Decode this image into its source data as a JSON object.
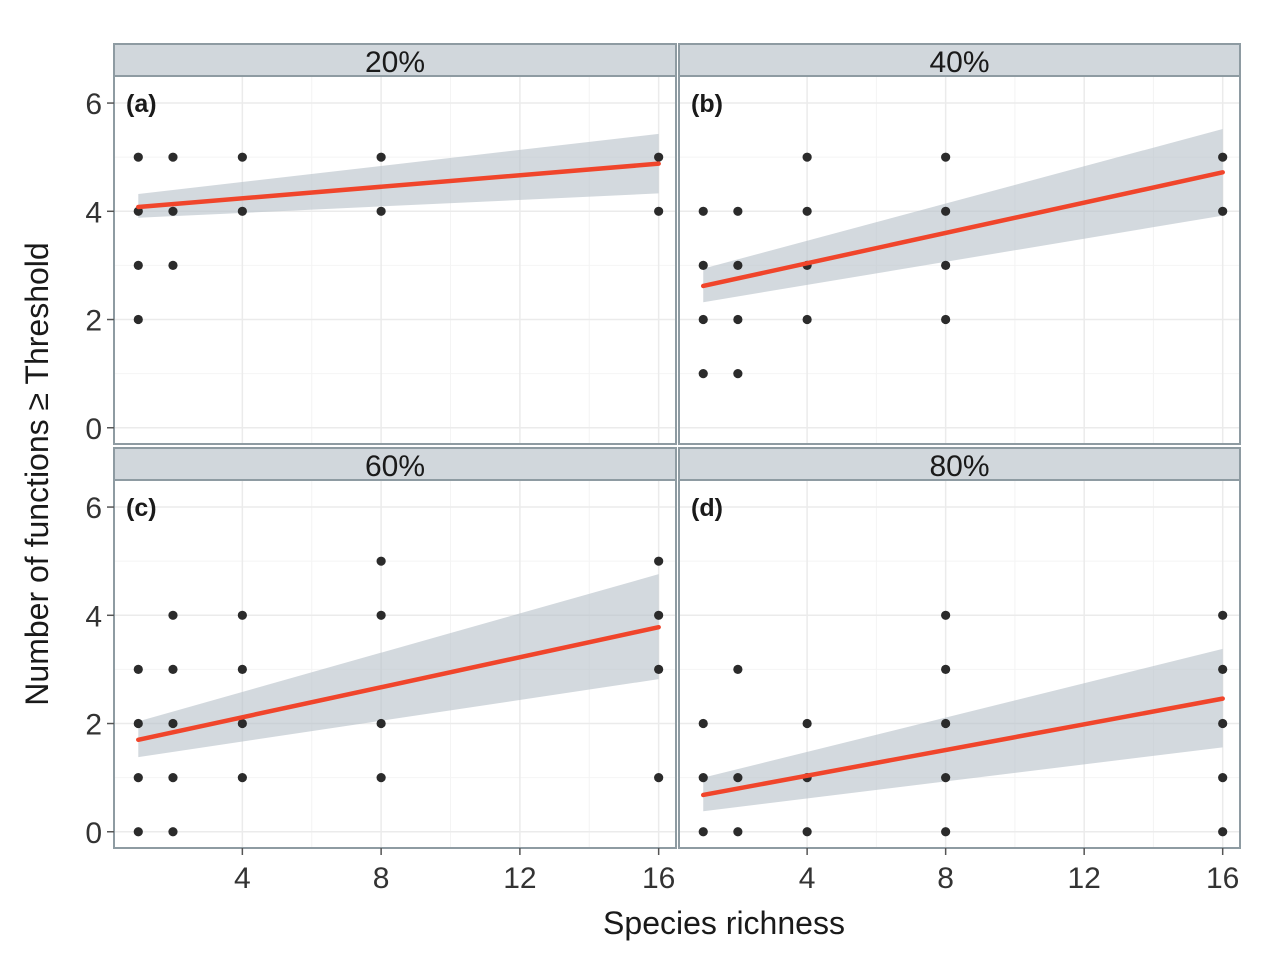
{
  "chart_data": {
    "type": "scatter",
    "facet_layout": "2x2 grid",
    "xlabel": "Species richness",
    "ylabel": "Number of functions ≥ Threshold",
    "xlim": [
      0.3,
      16.5
    ],
    "ylim": [
      -0.3,
      6.5
    ],
    "x_ticks": [
      4,
      8,
      12,
      16
    ],
    "x_tick_labels": [
      "4",
      "8",
      "12",
      "16"
    ],
    "y_ticks": [
      0,
      2,
      4,
      6
    ],
    "y_tick_labels": [
      "0",
      "2",
      "4",
      "6"
    ],
    "grid": true,
    "colors": {
      "strip_fill": "#d1d7dc",
      "border": "#8e9ba2",
      "point": "#2b2b2b",
      "fit_line": "#f0452b",
      "ribbon": "#b5c0c8",
      "grid": "#ebebeb"
    },
    "panels": [
      {
        "strip": "20%",
        "tag": "(a)",
        "points": [
          [
            1,
            5
          ],
          [
            1,
            4
          ],
          [
            1,
            3
          ],
          [
            1,
            2
          ],
          [
            2,
            5
          ],
          [
            2,
            4
          ],
          [
            2,
            3
          ],
          [
            4,
            5
          ],
          [
            4,
            4
          ],
          [
            8,
            5
          ],
          [
            8,
            4
          ],
          [
            16,
            5
          ],
          [
            16,
            4
          ]
        ],
        "fit": {
          "x": [
            1,
            16
          ],
          "y": [
            4.08,
            4.88
          ]
        },
        "ribbon": {
          "x": [
            1,
            16
          ],
          "lower": [
            3.88,
            4.33
          ],
          "upper": [
            4.32,
            5.43
          ]
        }
      },
      {
        "strip": "40%",
        "tag": "(b)",
        "points": [
          [
            1,
            4
          ],
          [
            1,
            3
          ],
          [
            1,
            2
          ],
          [
            1,
            1
          ],
          [
            2,
            4
          ],
          [
            2,
            3
          ],
          [
            2,
            2
          ],
          [
            2,
            1
          ],
          [
            4,
            5
          ],
          [
            4,
            4
          ],
          [
            4,
            3
          ],
          [
            4,
            2
          ],
          [
            8,
            5
          ],
          [
            8,
            4
          ],
          [
            8,
            3
          ],
          [
            8,
            2
          ],
          [
            16,
            5
          ],
          [
            16,
            4
          ]
        ],
        "fit": {
          "x": [
            1,
            16
          ],
          "y": [
            2.62,
            4.72
          ]
        },
        "ribbon": {
          "x": [
            1,
            16
          ],
          "lower": [
            2.32,
            3.92
          ],
          "upper": [
            2.94,
            5.52
          ]
        }
      },
      {
        "strip": "60%",
        "tag": "(c)",
        "points": [
          [
            1,
            3
          ],
          [
            1,
            2
          ],
          [
            1,
            1
          ],
          [
            1,
            0
          ],
          [
            2,
            4
          ],
          [
            2,
            3
          ],
          [
            2,
            2
          ],
          [
            2,
            1
          ],
          [
            2,
            0
          ],
          [
            4,
            4
          ],
          [
            4,
            3
          ],
          [
            4,
            2
          ],
          [
            4,
            1
          ],
          [
            8,
            5
          ],
          [
            8,
            4
          ],
          [
            8,
            2
          ],
          [
            8,
            1
          ],
          [
            16,
            5
          ],
          [
            16,
            4
          ],
          [
            16,
            3
          ],
          [
            16,
            1
          ]
        ],
        "fit": {
          "x": [
            1,
            16
          ],
          "y": [
            1.7,
            3.78
          ]
        },
        "ribbon": {
          "x": [
            1,
            16
          ],
          "lower": [
            1.38,
            2.82
          ],
          "upper": [
            2.04,
            4.76
          ]
        }
      },
      {
        "strip": "80%",
        "tag": "(d)",
        "points": [
          [
            1,
            2
          ],
          [
            1,
            1
          ],
          [
            1,
            0
          ],
          [
            2,
            3
          ],
          [
            2,
            1
          ],
          [
            2,
            0
          ],
          [
            4,
            2
          ],
          [
            4,
            1
          ],
          [
            4,
            0
          ],
          [
            8,
            4
          ],
          [
            8,
            3
          ],
          [
            8,
            2
          ],
          [
            8,
            1
          ],
          [
            8,
            0
          ],
          [
            16,
            4
          ],
          [
            16,
            3
          ],
          [
            16,
            2
          ],
          [
            16,
            1
          ],
          [
            16,
            0
          ]
        ],
        "fit": {
          "x": [
            1,
            16
          ],
          "y": [
            0.68,
            2.46
          ]
        },
        "ribbon": {
          "x": [
            1,
            16
          ],
          "lower": [
            0.38,
            1.56
          ],
          "upper": [
            1.0,
            3.38
          ]
        }
      }
    ]
  }
}
